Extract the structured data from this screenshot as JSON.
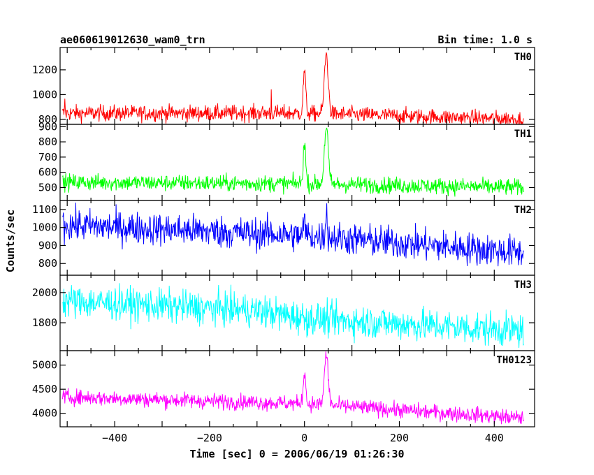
{
  "header": {
    "title": "ae060619012630_wam0_trn",
    "bin_time": "Bin time: 1.0 s"
  },
  "chart_data": {
    "type": "line",
    "title": "ae060619012630_wam0_trn",
    "xlabel": "Time [sec] 0 = 2006/06/19 01:26:30",
    "ylabel": "Counts/sec",
    "xlim": [
      -515,
      485
    ],
    "x_ticks": [
      -400,
      -200,
      0,
      200,
      400
    ],
    "x_tick_labels": [
      "−400",
      "−200",
      "0",
      "200",
      "400"
    ],
    "x_range": [
      -510,
      462
    ],
    "grid": false,
    "panels": [
      {
        "name": "TH0",
        "color": "#ff0000",
        "ylim": [
          760,
          1380
        ],
        "yticks": [
          800,
          1000,
          1200
        ],
        "noise": 32,
        "trend": [
          [
            -510,
            850
          ],
          [
            0,
            850
          ],
          [
            462,
            800
          ]
        ],
        "peaks": [
          {
            "t": 0,
            "height": 350,
            "width": 2.5
          },
          {
            "t": 46,
            "height": 480,
            "width": 4
          }
        ],
        "spikes": [
          {
            "t": -505,
            "value": 965
          },
          {
            "t": -70,
            "value": 1040
          }
        ]
      },
      {
        "name": "TH1",
        "color": "#00ff00",
        "ylim": [
          415,
          915
        ],
        "yticks": [
          500,
          600,
          700,
          800,
          900
        ],
        "noise": 27,
        "trend": [
          [
            -510,
            535
          ],
          [
            0,
            525
          ],
          [
            462,
            500
          ]
        ],
        "peaks": [
          {
            "t": 0,
            "height": 280,
            "width": 2.5
          },
          {
            "t": 46,
            "height": 380,
            "width": 4
          }
        ],
        "spikes": []
      },
      {
        "name": "TH2",
        "color": "#0000ff",
        "ylim": [
          735,
          1150
        ],
        "yticks": [
          800,
          900,
          1000,
          1100
        ],
        "noise": 45,
        "trend": [
          [
            -510,
            1015
          ],
          [
            0,
            955
          ],
          [
            462,
            860
          ]
        ],
        "peaks": [
          {
            "t": 0,
            "height": 80,
            "width": 2
          },
          {
            "t": 46,
            "height": 140,
            "width": 2
          }
        ],
        "spikes": []
      },
      {
        "name": "TH3",
        "color": "#00ffff",
        "ylim": [
          1615,
          2115
        ],
        "yticks": [
          1800,
          2000
        ],
        "noise": 55,
        "trend": [
          [
            -510,
            1945
          ],
          [
            -100,
            1880
          ],
          [
            0,
            1830
          ],
          [
            462,
            1745
          ]
        ],
        "peaks": [],
        "spikes": []
      },
      {
        "name": "TH0123",
        "color": "#ff00ff",
        "ylim": [
          3720,
          5300
        ],
        "yticks": [
          4000,
          4500,
          5000
        ],
        "noise": 80,
        "trend": [
          [
            -510,
            4340
          ],
          [
            0,
            4200
          ],
          [
            462,
            3900
          ]
        ],
        "peaks": [
          {
            "t": 0,
            "height": 700,
            "width": 2.5
          },
          {
            "t": 46,
            "height": 1050,
            "width": 4
          }
        ],
        "spikes": []
      }
    ]
  }
}
